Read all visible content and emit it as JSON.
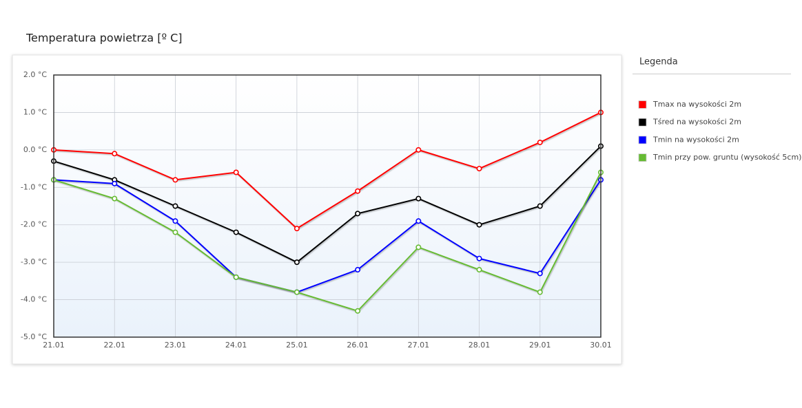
{
  "chart_data": {
    "type": "line",
    "title": "Temperatura powietrza [º C]",
    "legend_title": "Legenda",
    "legend": "right",
    "grid": true,
    "categories": [
      "21.01",
      "22.01",
      "23.01",
      "24.01",
      "25.01",
      "26.01",
      "27.01",
      "28.01",
      "29.01",
      "30.01"
    ],
    "ylim": [
      -5,
      2
    ],
    "yticks": [
      {
        "value": -5,
        "label": "-5.0 °C"
      },
      {
        "value": -4,
        "label": "-4.0 °C"
      },
      {
        "value": -3,
        "label": "-3.0 °C"
      },
      {
        "value": -2,
        "label": "-2.0 °C"
      },
      {
        "value": -1,
        "label": "-1.0 °C"
      },
      {
        "value": 0,
        "label": "0.0 °C"
      },
      {
        "value": 1,
        "label": "1.0 °C"
      },
      {
        "value": 2,
        "label": "2.0 °C"
      }
    ],
    "series": [
      {
        "name": "Tmax na wysokości 2m",
        "color": "#ff0000",
        "values": [
          0.0,
          -0.1,
          -0.8,
          -0.6,
          -2.1,
          -1.1,
          0.0,
          -0.5,
          0.2,
          1.0
        ]
      },
      {
        "name": "Tśred na wysokości 2m",
        "color": "#000000",
        "values": [
          -0.3,
          -0.8,
          -1.5,
          -2.2,
          -3.0,
          -1.7,
          -1.3,
          -2.0,
          -1.5,
          0.1
        ]
      },
      {
        "name": "Tmin na wysokości 2m",
        "color": "#0000ff",
        "values": [
          -0.8,
          -0.9,
          -1.9,
          -3.4,
          -3.8,
          -3.2,
          -1.9,
          -2.9,
          -3.3,
          -0.8
        ]
      },
      {
        "name": "Tmin przy pow. gruntu (wysokość 5cm)",
        "color": "#66bb33",
        "values": [
          -0.8,
          -1.3,
          -2.2,
          -3.4,
          -3.8,
          -4.3,
          -2.6,
          -3.2,
          -3.8,
          -0.6
        ]
      }
    ]
  }
}
